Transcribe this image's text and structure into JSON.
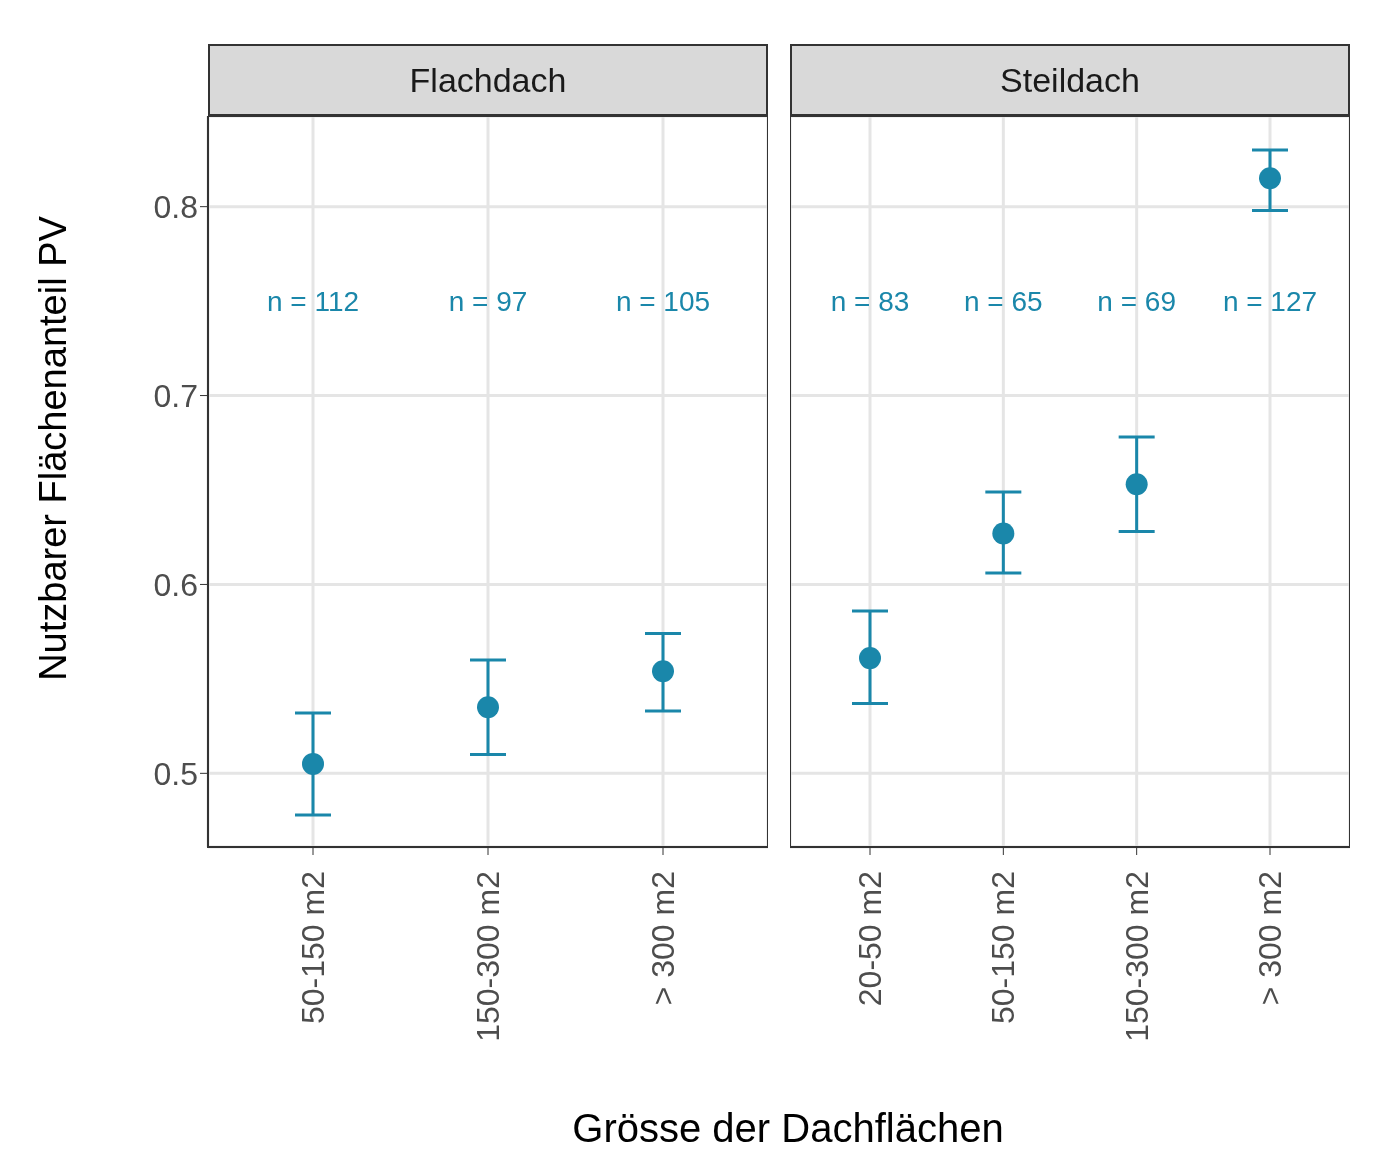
{
  "chart_data": [
    {
      "type": "scatter",
      "title": "Flachdach",
      "ylabel": "Nutzbarer Flächenanteil PV",
      "xlabel": "Grösse der Dachflächen",
      "categories": [
        "50-150 m2",
        "150-300 m2",
        "> 300 m2"
      ],
      "values": [
        0.505,
        0.535,
        0.554
      ],
      "errors": [
        [
          0.478,
          0.532
        ],
        [
          0.51,
          0.56
        ],
        [
          0.533,
          0.574
        ]
      ],
      "color": "#1a87aa",
      "marker": "circle",
      "ylim": [
        0.461,
        0.848
      ],
      "yticks": [
        0.5,
        0.6,
        0.7,
        0.8
      ],
      "grid": true,
      "annotations": [
        "n = 112",
        "n = 97",
        "n = 105"
      ]
    },
    {
      "type": "scatter",
      "title": "Steildach",
      "categories": [
        "20-50 m2",
        "50-150 m2",
        "150-300 m2",
        "> 300 m2"
      ],
      "values": [
        0.561,
        0.627,
        0.653,
        0.815
      ],
      "errors": [
        [
          0.537,
          0.586
        ],
        [
          0.606,
          0.649
        ],
        [
          0.628,
          0.678
        ],
        [
          0.798,
          0.83
        ]
      ],
      "color": "#1a87aa",
      "marker": "circle",
      "ylim": [
        0.461,
        0.848
      ],
      "yticks": [
        0.5,
        0.6,
        0.7,
        0.8
      ],
      "grid": true,
      "tick_labels": "x",
      "annotations": [
        "n = 83",
        "n = 65",
        "n = 69",
        "n = 127"
      ]
    }
  ]
}
